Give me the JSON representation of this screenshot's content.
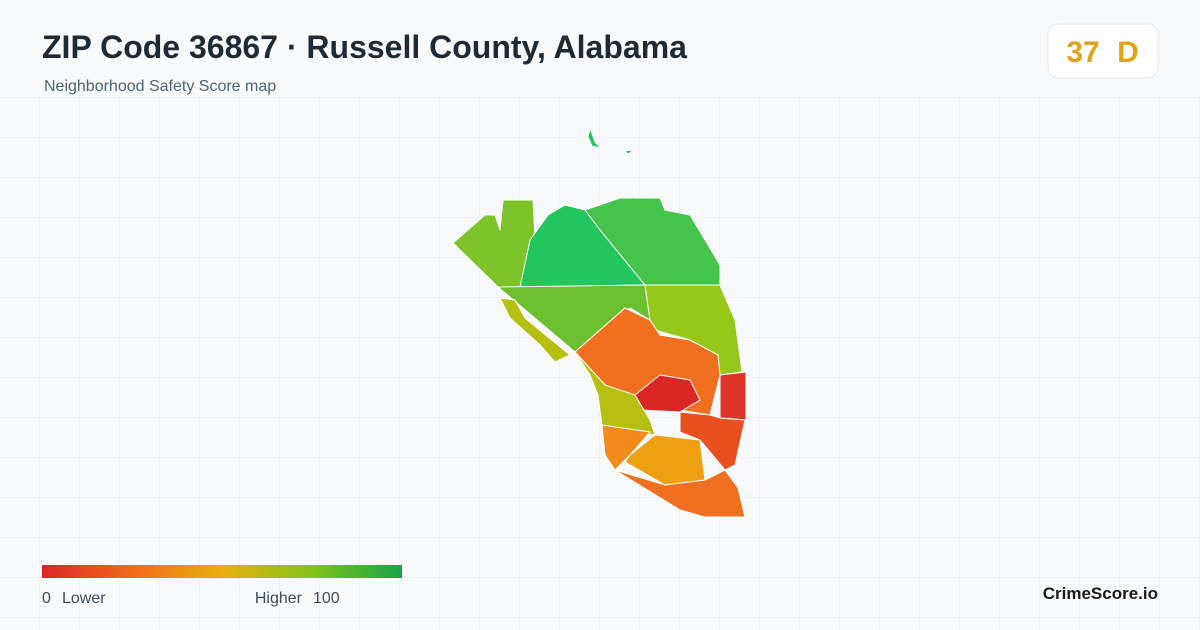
{
  "header": {
    "title": "ZIP Code 36867 · Russell County, Alabama",
    "subtitle": "Neighborhood Safety Score map"
  },
  "score": {
    "value": "37",
    "grade": "D"
  },
  "legend": {
    "min": "0",
    "min_label": "Lower",
    "max_label": "Higher",
    "max": "100"
  },
  "brand": "CrimeScore.io"
}
